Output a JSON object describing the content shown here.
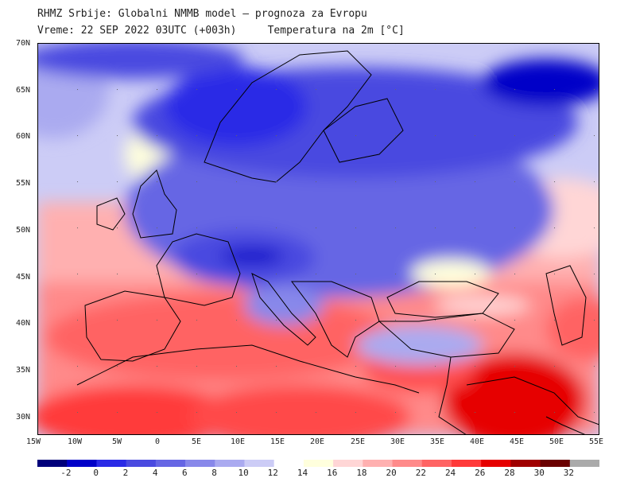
{
  "header": {
    "line1": "RHMZ Srbije: Globalni NMMB model — prognoza za Evropu",
    "line2": "Vreme: 22 SEP 2022 03UTC (+003h)     Temperatura na 2m [°C]"
  },
  "map": {
    "lat_labels": [
      "70N",
      "65N",
      "60N",
      "55N",
      "50N",
      "45N",
      "40N",
      "35N",
      "30N"
    ],
    "lon_labels": [
      "15W",
      "10W",
      "5W",
      "0",
      "5E",
      "10E",
      "15E",
      "20E",
      "25E",
      "30E",
      "35E",
      "40E",
      "45E",
      "50E",
      "55E"
    ]
  },
  "colorbar": {
    "labels": [
      "-2",
      "0",
      "2",
      "4",
      "6",
      "8",
      "10",
      "12",
      "14",
      "16",
      "18",
      "20",
      "22",
      "24",
      "26",
      "28",
      "30",
      "32"
    ],
    "colors": [
      "#00007a",
      "#0000c8",
      "#2a2ae6",
      "#4a4ae0",
      "#6666e4",
      "#8888ea",
      "#aaaaf0",
      "#ccccf6",
      "#ffffff",
      "#ffffdd",
      "#ffd6d6",
      "#ffb0b0",
      "#ff8a8a",
      "#ff6464",
      "#ff3a3a",
      "#e60000",
      "#a00000",
      "#6a0000",
      "#aaaaaa"
    ]
  },
  "colors": {
    "cold": "#3333e0",
    "cool": "#9999ee",
    "mild": "#ffffdd",
    "warm": "#ff7a7a",
    "hot": "#e60000",
    "land_border": "#000000"
  }
}
